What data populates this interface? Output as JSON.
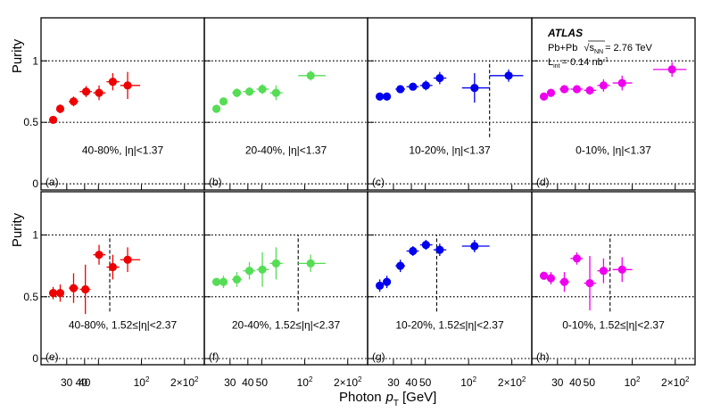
{
  "figure": {
    "atlas_label": "ATLAS",
    "system_label": "Pb+Pb",
    "sqrt_label": "s",
    "sqrt_sub": "NN",
    "energy_label": "= 2.76 TeV",
    "lumi_L": "L",
    "lumi_sub": "int",
    "lumi_value": "= 0.14 nb",
    "lumi_sup": "-1",
    "x_title": "Photon",
    "x_title_p": "p",
    "x_title_sub": "T",
    "x_title_unit": "[GeV]",
    "y_title": "Purity",
    "y_ticks": [
      "0",
      "0.5",
      "1"
    ],
    "x_tick_labels": [
      "30",
      "40",
      "50",
      "10",
      "2",
      "2×10",
      "2"
    ]
  },
  "chart_data": [
    {
      "type": "scatter",
      "panel": "(a)",
      "label": "40-80%, |η|<1.37",
      "color": "#ee0000",
      "row": 0,
      "col": 0,
      "cut": null,
      "points": [
        [
          24.1,
          0.52,
          0.03,
          1.1,
          0.6
        ],
        [
          27.0,
          0.61,
          0.035,
          1.6,
          1.5
        ],
        [
          33.5,
          0.67,
          0.04,
          2.5,
          2.7
        ],
        [
          41.0,
          0.75,
          0.045,
          4.0,
          4.0
        ],
        [
          50.5,
          0.74,
          0.06,
          4.5,
          5.5
        ],
        [
          63.0,
          0.83,
          0.07,
          6.0,
          7.0
        ],
        [
          80.0,
          0.8,
          0.11,
          9.0,
          18.0
        ]
      ]
    },
    {
      "type": "scatter",
      "panel": "(b)",
      "label": "20-40%, |η|<1.37",
      "color": "#55dd55",
      "row": 0,
      "col": 1,
      "cut": null,
      "points": [
        [
          24.1,
          0.61,
          0.025,
          1.1,
          0.6
        ],
        [
          27.0,
          0.67,
          0.03,
          1.6,
          1.5
        ],
        [
          33.5,
          0.74,
          0.035,
          2.5,
          2.7
        ],
        [
          41.0,
          0.75,
          0.035,
          4.0,
          4.0
        ],
        [
          50.5,
          0.77,
          0.04,
          4.5,
          5.5
        ],
        [
          63.0,
          0.74,
          0.06,
          6.0,
          7.0
        ],
        [
          110.0,
          0.88,
          0.04,
          20.0,
          30.0
        ]
      ]
    },
    {
      "type": "scatter",
      "panel": "(c)",
      "label": "10-20%, |η|<1.37",
      "color": "#0000ee",
      "row": 0,
      "col": 2,
      "cut": 140,
      "points": [
        [
          24.1,
          0.71,
          0.025,
          1.1,
          0.6
        ],
        [
          27.0,
          0.71,
          0.025,
          1.6,
          1.5
        ],
        [
          33.5,
          0.77,
          0.03,
          2.5,
          2.7
        ],
        [
          41.0,
          0.79,
          0.03,
          4.0,
          4.0
        ],
        [
          50.5,
          0.8,
          0.04,
          4.5,
          5.5
        ],
        [
          63.0,
          0.86,
          0.05,
          6.0,
          7.0
        ],
        [
          110.0,
          0.78,
          0.12,
          20.0,
          30.0
        ],
        [
          190.0,
          0.88,
          0.05,
          50.0,
          50.0
        ]
      ]
    },
    {
      "type": "scatter",
      "panel": "(d)",
      "label": "0-10%, |η|<1.37",
      "color": "#ee00ee",
      "row": 0,
      "col": 3,
      "cut": null,
      "points": [
        [
          24.1,
          0.71,
          0.02,
          1.1,
          0.6
        ],
        [
          27.0,
          0.74,
          0.025,
          1.6,
          1.5
        ],
        [
          33.5,
          0.77,
          0.03,
          2.5,
          2.7
        ],
        [
          41.0,
          0.77,
          0.03,
          4.0,
          4.0
        ],
        [
          50.5,
          0.76,
          0.035,
          4.5,
          5.5
        ],
        [
          63.0,
          0.8,
          0.05,
          6.0,
          7.0
        ],
        [
          85.0,
          0.82,
          0.06,
          12.0,
          15.0
        ],
        [
          190.0,
          0.93,
          0.06,
          50.0,
          50.0
        ]
      ]
    },
    {
      "type": "scatter",
      "panel": "(e)",
      "label": "40-80%, 1.52≤|η|<2.37",
      "color": "#ee0000",
      "row": 1,
      "col": 0,
      "cut": 60,
      "points": [
        [
          24.1,
          0.53,
          0.05,
          1.1,
          0.6
        ],
        [
          27.0,
          0.53,
          0.07,
          1.6,
          1.5
        ],
        [
          33.5,
          0.57,
          0.12,
          2.5,
          2.7
        ],
        [
          40.5,
          0.56,
          0.2,
          3.5,
          3.5
        ],
        [
          50.5,
          0.84,
          0.08,
          4.5,
          5.5
        ],
        [
          63.0,
          0.74,
          0.1,
          6.0,
          7.0
        ],
        [
          80.0,
          0.8,
          0.1,
          9.0,
          18.0
        ]
      ]
    },
    {
      "type": "scatter",
      "panel": "(f)",
      "label": "20-40%, 1.52≤|η|<2.37",
      "color": "#55dd55",
      "row": 1,
      "col": 1,
      "cut": 90,
      "points": [
        [
          24.1,
          0.62,
          0.03,
          1.1,
          0.6
        ],
        [
          27.0,
          0.62,
          0.05,
          1.6,
          1.5
        ],
        [
          33.5,
          0.64,
          0.06,
          2.5,
          2.7
        ],
        [
          41.0,
          0.71,
          0.07,
          4.0,
          4.0
        ],
        [
          50.5,
          0.72,
          0.14,
          4.5,
          5.5
        ],
        [
          63.0,
          0.77,
          0.13,
          6.0,
          7.0
        ],
        [
          110.0,
          0.77,
          0.07,
          20.0,
          30.0
        ]
      ]
    },
    {
      "type": "scatter",
      "panel": "(g)",
      "label": "10-20%, 1.52≤|η|<2.37",
      "color": "#0000ee",
      "row": 1,
      "col": 2,
      "cut": 60,
      "points": [
        [
          24.1,
          0.59,
          0.05,
          1.1,
          0.6
        ],
        [
          27.0,
          0.62,
          0.05,
          1.6,
          1.5
        ],
        [
          33.5,
          0.75,
          0.05,
          2.5,
          2.7
        ],
        [
          41.0,
          0.87,
          0.04,
          4.0,
          4.0
        ],
        [
          50.5,
          0.92,
          0.04,
          4.5,
          5.5
        ],
        [
          63.0,
          0.88,
          0.05,
          6.0,
          7.0
        ],
        [
          110.0,
          0.91,
          0.05,
          20.0,
          30.0
        ]
      ]
    },
    {
      "type": "scatter",
      "panel": "(h)",
      "label": "0-10%, 1.52≤|η|<2.37",
      "color": "#ee00ee",
      "row": 1,
      "col": 3,
      "cut": 70,
      "points": [
        [
          24.1,
          0.67,
          0.03,
          1.1,
          0.6
        ],
        [
          27.0,
          0.65,
          0.05,
          1.6,
          1.5
        ],
        [
          33.5,
          0.62,
          0.08,
          2.5,
          2.7
        ],
        [
          41.0,
          0.81,
          0.05,
          4.0,
          4.0
        ],
        [
          50.5,
          0.61,
          0.22,
          4.5,
          5.5
        ],
        [
          63.0,
          0.71,
          0.1,
          6.0,
          7.0
        ],
        [
          85.0,
          0.72,
          0.1,
          12.0,
          15.0
        ]
      ]
    }
  ],
  "axes": {
    "x_scale": "log",
    "x_range_gev": [
      21,
      260
    ],
    "y_range": [
      -0.05,
      1.35
    ],
    "reference_lines": [
      0,
      0.5,
      1
    ],
    "x_tick_values": [
      30,
      40,
      50,
      100,
      200
    ]
  }
}
